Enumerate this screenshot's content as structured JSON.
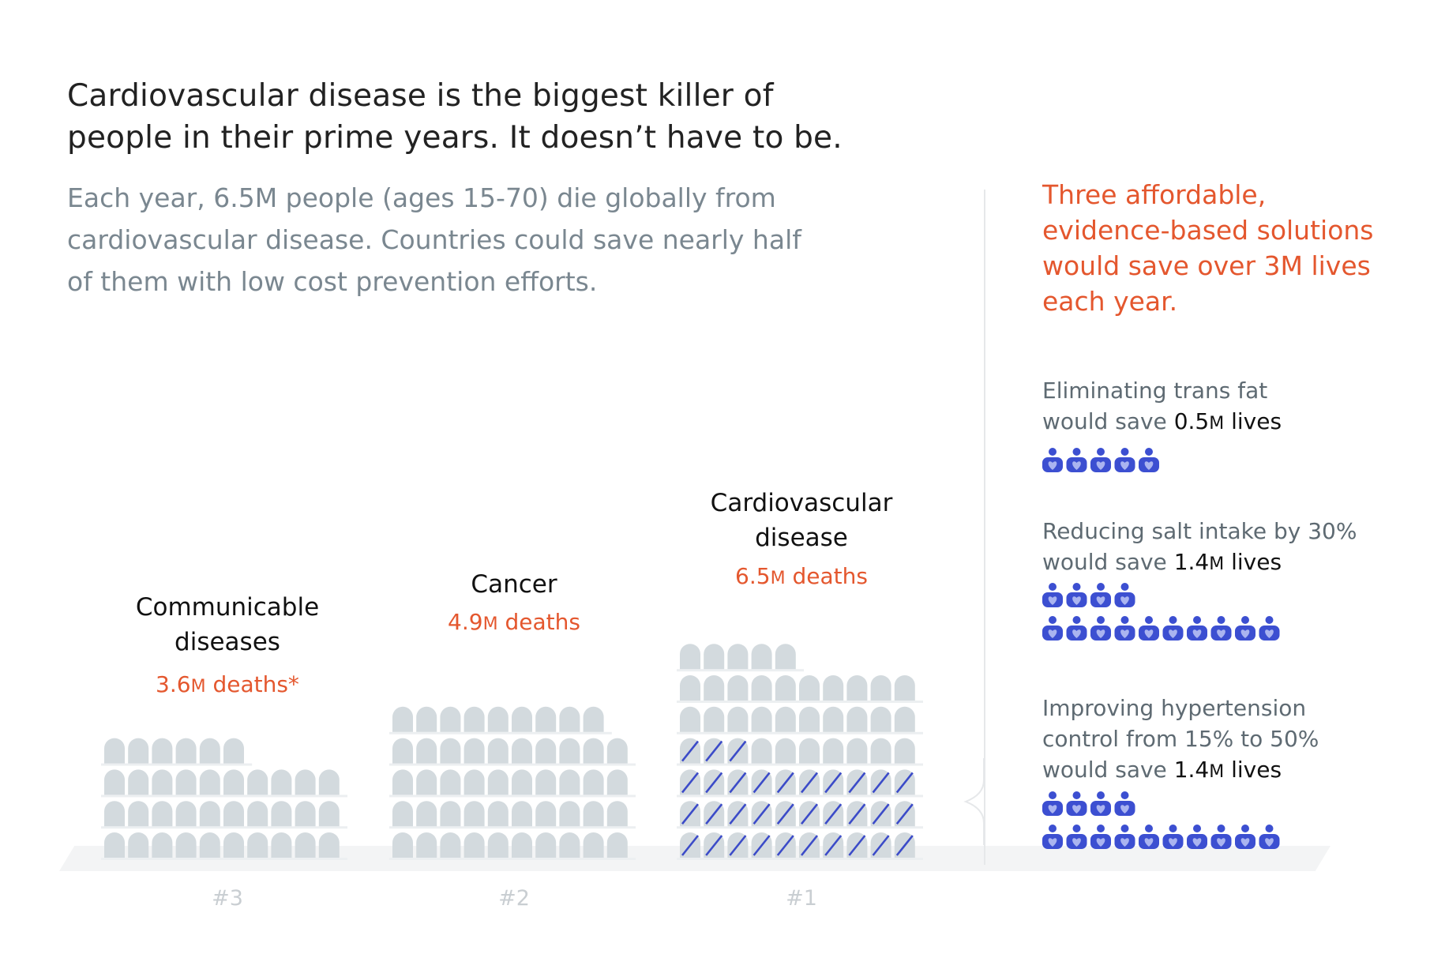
{
  "headline": {
    "line1": "Cardiovascular disease is the biggest killer of",
    "line2": "people in their prime years. It doesn’t have to be."
  },
  "intro": {
    "line1": "Each year, 6.5M people (ages 15-70) die globally from",
    "line2": "cardiovascular disease. Countries could save nearly half",
    "line3": "of them with low cost prevention efforts."
  },
  "chart_data": {
    "type": "bar",
    "unit": "M deaths",
    "categories": [
      "Communicable diseases",
      "Cancer",
      "Cardiovascular disease"
    ],
    "values": [
      3.6,
      4.9,
      6.5
    ],
    "preventable_cardiovascular": 3.3,
    "ranks": [
      "#3",
      "#2",
      "#1"
    ],
    "columns": [
      {
        "label_lines": [
          "Communicable",
          "diseases"
        ],
        "deaths_value": "3.6",
        "deaths_unit": "M",
        "deaths_suffix": " deaths*",
        "rank": "#3"
      },
      {
        "label_lines": [
          "Cancer"
        ],
        "deaths_value": "4.9",
        "deaths_unit": "M",
        "deaths_suffix": " deaths",
        "rank": "#2"
      },
      {
        "label_lines": [
          "Cardiovascular",
          "disease"
        ],
        "deaths_value": "6.5",
        "deaths_unit": "M",
        "deaths_suffix": " deaths",
        "rank": "#1"
      }
    ],
    "solutions": [
      {
        "lines": [
          "Eliminating trans fat"
        ],
        "save_prefix": "would save ",
        "value": "0.5",
        "unit": "M",
        "suffix": " lives",
        "lives_saved": 0.5
      },
      {
        "lines": [
          "Reducing salt intake by 30%"
        ],
        "save_prefix": "would save ",
        "value": "1.4",
        "unit": "M",
        "suffix": " lives",
        "lives_saved": 1.4
      },
      {
        "lines": [
          "Improving hypertension",
          "control from 15% to 50%"
        ],
        "save_prefix": "would save ",
        "value": "1.4",
        "unit": "M",
        "suffix": " lives",
        "lives_saved": 1.4
      }
    ]
  },
  "solutions_headline": {
    "line1": "Three affordable,",
    "line2": "evidence-based solutions",
    "line3": "would save over 3M lives",
    "line4": "each year."
  },
  "colors": {
    "accent": "#e4572e",
    "tombstone": "#d3dade",
    "prevented_stroke": "#3b4bc8",
    "icon": "#3c4fd1",
    "rank": "#c9ced2"
  },
  "icons": {
    "tombstone": "tombstone-icon",
    "person": "person-heart-icon"
  }
}
